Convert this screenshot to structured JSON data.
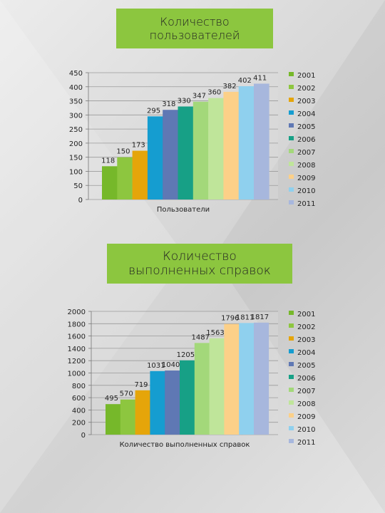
{
  "chart_data": [
    {
      "type": "bar",
      "title_lines": [
        "Количество",
        "пользователей"
      ],
      "xlabel": "Пользователи",
      "ylim": [
        0,
        450
      ],
      "yticks": [
        0,
        50,
        100,
        150,
        200,
        250,
        300,
        350,
        400,
        450
      ],
      "series": [
        {
          "name": "2001",
          "value": 118,
          "color": "#76b82a"
        },
        {
          "name": "2002",
          "value": 150,
          "color": "#8dc63f"
        },
        {
          "name": "2003",
          "value": 173,
          "color": "#e5a50a"
        },
        {
          "name": "2004",
          "value": 295,
          "color": "#159dd0"
        },
        {
          "name": "2005",
          "value": 318,
          "color": "#5f78b4"
        },
        {
          "name": "2006",
          "value": 330,
          "color": "#17a086"
        },
        {
          "name": "2007",
          "value": 347,
          "color": "#a3d87a"
        },
        {
          "name": "2008",
          "value": 360,
          "color": "#bfe59a"
        },
        {
          "name": "2009",
          "value": 382,
          "color": "#fcd088"
        },
        {
          "name": "2010",
          "value": 402,
          "color": "#8fd0ee"
        },
        {
          "name": "2011",
          "value": 411,
          "color": "#a7b7dd"
        }
      ]
    },
    {
      "type": "bar",
      "title_lines": [
        "Количество",
        "выполненных справок"
      ],
      "xlabel": "Количество выполненных справок",
      "ylim": [
        0,
        2000
      ],
      "yticks": [
        0,
        200,
        400,
        600,
        800,
        1000,
        1200,
        1400,
        1600,
        1800,
        2000
      ],
      "series": [
        {
          "name": "2001",
          "value": 495,
          "color": "#76b82a"
        },
        {
          "name": "2002",
          "value": 570,
          "color": "#8dc63f"
        },
        {
          "name": "2003",
          "value": 719,
          "color": "#e5a50a"
        },
        {
          "name": "2004",
          "value": 1031,
          "color": "#159dd0"
        },
        {
          "name": "2005",
          "value": 1040,
          "color": "#5f78b4"
        },
        {
          "name": "2006",
          "value": 1205,
          "color": "#17a086"
        },
        {
          "name": "2007",
          "value": 1487,
          "color": "#a3d87a"
        },
        {
          "name": "2008",
          "value": 1563,
          "color": "#bfe59a"
        },
        {
          "name": "2009",
          "value": 1796,
          "color": "#fcd088"
        },
        {
          "name": "2010",
          "value": 1811,
          "color": "#8fd0ee"
        },
        {
          "name": "2011",
          "value": 1817,
          "color": "#a7b7dd"
        }
      ]
    }
  ]
}
